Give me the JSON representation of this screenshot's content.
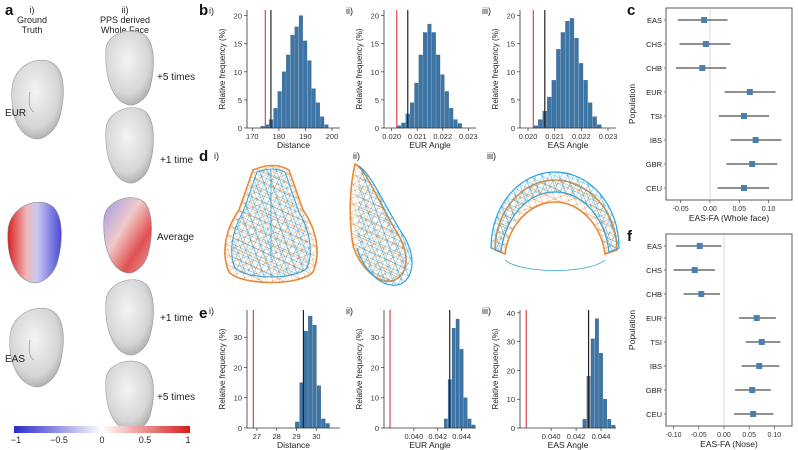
{
  "panel_a": {
    "letter": "a",
    "col1": {
      "roman": "i)",
      "line1": "Ground",
      "line2": "Truth"
    },
    "col2": {
      "roman": "ii)",
      "line1": "PPS derived",
      "line2": "Whole Face"
    },
    "row_labels": {
      "eur": "EUR",
      "eas": "EAS"
    },
    "right_labels": [
      "+5 times",
      "+1 time",
      "Average",
      "+1 time",
      "+5 times"
    ],
    "colorbar_ticks": [
      "−1",
      "−0.5",
      "0",
      "0.5",
      "1"
    ],
    "colors": {
      "neg": "#2a2acb",
      "mid": "#ffffff",
      "pos": "#d81b1b"
    }
  },
  "panel_b": {
    "letter": "b"
  },
  "panel_d": {
    "letter": "d",
    "romans": [
      "i)",
      "ii)",
      "iii)"
    ]
  },
  "panel_e": {
    "letter": "e"
  },
  "panel_c": {
    "letter": "c"
  },
  "panel_f": {
    "letter": "f"
  },
  "chart_data": [
    {
      "id": "b-i",
      "type": "bar",
      "roman": "i)",
      "xlabel": "Distance",
      "ylabel": "Relative frequency (%)",
      "xlim": [
        168,
        203
      ],
      "ylim": [
        0,
        21
      ],
      "xticks": [
        170,
        180,
        190,
        200
      ],
      "yticks": [
        0,
        5,
        10,
        15,
        20
      ],
      "bin_width": 1.6,
      "bins": [
        [
          174.0,
          0.3
        ],
        [
          175.6,
          0.6
        ],
        [
          177.2,
          1.5
        ],
        [
          178.8,
          3.5
        ],
        [
          180.4,
          6.5
        ],
        [
          182.0,
          10
        ],
        [
          183.6,
          13
        ],
        [
          185.2,
          16.5
        ],
        [
          186.8,
          18
        ],
        [
          188.4,
          20
        ],
        [
          190.0,
          15.5
        ],
        [
          191.6,
          12
        ],
        [
          193.2,
          7
        ],
        [
          194.8,
          4.5
        ],
        [
          196.4,
          2
        ],
        [
          198.0,
          0.6
        ]
      ],
      "vlines": [
        {
          "x": 174.9,
          "color": "#e0454b"
        },
        {
          "x": 177.0,
          "color": "#222222"
        }
      ]
    },
    {
      "id": "b-ii",
      "type": "bar",
      "roman": "ii)",
      "xlabel": "EUR Angle",
      "ylabel": "Relative frequency (%)",
      "xlim": [
        0.0197,
        0.0233
      ],
      "ylim": [
        0,
        21
      ],
      "xticks": [
        0.02,
        0.021,
        0.022,
        0.023
      ],
      "xtick_labels": [
        "0.020",
        "0.021",
        "0.022",
        "0.023"
      ],
      "yticks": [
        0,
        5,
        10,
        15,
        20
      ],
      "bin_width": 0.00017,
      "bins": [
        [
          0.0203,
          0.4
        ],
        [
          0.02047,
          0.9
        ],
        [
          0.02064,
          2.5
        ],
        [
          0.02081,
          4.5
        ],
        [
          0.02098,
          8
        ],
        [
          0.02115,
          13
        ],
        [
          0.02132,
          17
        ],
        [
          0.02149,
          18.5
        ],
        [
          0.02166,
          17
        ],
        [
          0.02183,
          13
        ],
        [
          0.022,
          9.5
        ],
        [
          0.02217,
          6.5
        ],
        [
          0.02234,
          3.5
        ],
        [
          0.02251,
          1.5
        ],
        [
          0.02268,
          0.8
        ]
      ],
      "vlines": [
        {
          "x": 0.0202,
          "color": "#e0454b"
        },
        {
          "x": 0.02063,
          "color": "#222222"
        }
      ]
    },
    {
      "id": "b-iii",
      "type": "bar",
      "roman": "iii)",
      "xlabel": "EAS Angle",
      "ylabel": "Relative frequency (%)",
      "xlim": [
        0.0197,
        0.0233
      ],
      "ylim": [
        0,
        21
      ],
      "xticks": [
        0.02,
        0.021,
        0.022,
        0.023
      ],
      "xtick_labels": [
        "0.020",
        "0.021",
        "0.022",
        "0.023"
      ],
      "yticks": [
        0,
        5,
        10,
        15,
        20
      ],
      "bin_width": 0.00017,
      "bins": [
        [
          0.0203,
          0.4
        ],
        [
          0.02047,
          1.5
        ],
        [
          0.02064,
          3
        ],
        [
          0.02081,
          5.5
        ],
        [
          0.02098,
          8.5
        ],
        [
          0.02115,
          14
        ],
        [
          0.02132,
          17
        ],
        [
          0.02149,
          19
        ],
        [
          0.02166,
          19.5
        ],
        [
          0.02183,
          16
        ],
        [
          0.022,
          11.5
        ],
        [
          0.02217,
          8.5
        ],
        [
          0.02234,
          4.5
        ],
        [
          0.02251,
          2
        ],
        [
          0.02268,
          0.6
        ]
      ],
      "vlines": [
        {
          "x": 0.0202,
          "color": "#e0454b"
        },
        {
          "x": 0.02063,
          "color": "#222222"
        }
      ]
    },
    {
      "id": "e-i",
      "type": "bar",
      "roman": "i)",
      "xlabel": "Distance",
      "ylabel": "Relative frequency (%)",
      "xlim": [
        26.5,
        31.2
      ],
      "ylim": [
        0,
        39
      ],
      "xticks": [
        27,
        28,
        29,
        30
      ],
      "yticks": [
        0,
        10,
        20,
        30
      ],
      "bin_width": 0.22,
      "bins": [
        [
          29.05,
          2
        ],
        [
          29.27,
          15
        ],
        [
          29.49,
          32
        ],
        [
          29.71,
          37
        ],
        [
          29.93,
          34
        ],
        [
          30.15,
          14
        ],
        [
          30.37,
          3
        ],
        [
          30.59,
          1.5
        ]
      ],
      "vlines": [
        {
          "x": 26.82,
          "color": "#e0454b"
        },
        {
          "x": 29.35,
          "color": "#222222"
        }
      ]
    },
    {
      "id": "e-ii",
      "type": "bar",
      "roman": "ii)",
      "xlabel": "EUR Angle",
      "ylabel": "Relative frequency (%)",
      "xlim": [
        0.0375,
        0.0452
      ],
      "ylim": [
        0,
        39
      ],
      "xticks": [
        0.04,
        0.042,
        0.044
      ],
      "xtick_labels": [
        "0.040",
        "0.042",
        "0.044"
      ],
      "yticks": [
        0,
        10,
        20,
        30
      ],
      "bin_width": 0.00033,
      "bins": [
        [
          0.0427,
          3
        ],
        [
          0.04303,
          16
        ],
        [
          0.04336,
          33
        ],
        [
          0.04369,
          36
        ],
        [
          0.04402,
          26
        ],
        [
          0.04435,
          10
        ],
        [
          0.04468,
          3
        ],
        [
          0.04501,
          1
        ]
      ],
      "vlines": [
        {
          "x": 0.038,
          "color": "#e0454b"
        },
        {
          "x": 0.043,
          "color": "#222222"
        }
      ]
    },
    {
      "id": "e-iii",
      "type": "bar",
      "roman": "iii)",
      "xlabel": "EAS Angle",
      "ylabel": "Relative frequency (%)",
      "xlim": [
        0.0375,
        0.0452
      ],
      "ylim": [
        0,
        41
      ],
      "xticks": [
        0.04,
        0.042,
        0.044
      ],
      "xtick_labels": [
        "0.040",
        "0.042",
        "0.044"
      ],
      "yticks": [
        0,
        10,
        20,
        30,
        40
      ],
      "bin_width": 0.00033,
      "bins": [
        [
          0.0427,
          3
        ],
        [
          0.04303,
          18
        ],
        [
          0.04336,
          31
        ],
        [
          0.04369,
          38
        ],
        [
          0.04402,
          26
        ],
        [
          0.04435,
          10
        ],
        [
          0.04468,
          3
        ],
        [
          0.04501,
          1
        ]
      ],
      "vlines": [
        {
          "x": 0.038,
          "color": "#e0454b"
        },
        {
          "x": 0.043,
          "color": "#222222"
        }
      ]
    },
    {
      "id": "c",
      "type": "forest",
      "xlabel": "EAS-FA (Whole face)",
      "ylabel": "Population",
      "xlim": [
        -0.075,
        0.14
      ],
      "xticks": [
        -0.05,
        0.0,
        0.05,
        0.1
      ],
      "xtick_labels": [
        "-0.05",
        "0.00",
        "0.05",
        "0.10"
      ],
      "rows": [
        {
          "label": "EAS",
          "est": -0.01,
          "lo": -0.055,
          "hi": 0.03
        },
        {
          "label": "CHS",
          "est": -0.007,
          "lo": -0.052,
          "hi": 0.035
        },
        {
          "label": "CHB",
          "est": -0.013,
          "lo": -0.058,
          "hi": 0.028
        },
        {
          "label": "EUR",
          "est": 0.068,
          "lo": 0.025,
          "hi": 0.112
        },
        {
          "label": "TSI",
          "est": 0.058,
          "lo": 0.015,
          "hi": 0.101
        },
        {
          "label": "IBS",
          "est": 0.078,
          "lo": 0.035,
          "hi": 0.122
        },
        {
          "label": "GBR",
          "est": 0.072,
          "lo": 0.028,
          "hi": 0.115
        },
        {
          "label": "CEU",
          "est": 0.058,
          "lo": 0.013,
          "hi": 0.101
        }
      ]
    },
    {
      "id": "f",
      "type": "forest",
      "xlabel": "EAS-FA (Nose)",
      "ylabel": "Population",
      "xlim": [
        -0.115,
        0.135
      ],
      "xticks": [
        -0.1,
        -0.05,
        0.0,
        0.05,
        0.1
      ],
      "xtick_labels": [
        "-0.10",
        "-0.05",
        "0.00",
        "0.05",
        "0.10"
      ],
      "rows": [
        {
          "label": "EAS",
          "est": -0.048,
          "lo": -0.095,
          "hi": -0.005
        },
        {
          "label": "CHS",
          "est": -0.058,
          "lo": -0.1,
          "hi": -0.018
        },
        {
          "label": "CHB",
          "est": -0.045,
          "lo": -0.08,
          "hi": -0.008
        },
        {
          "label": "EUR",
          "est": 0.065,
          "lo": 0.03,
          "hi": 0.103
        },
        {
          "label": "TSI",
          "est": 0.075,
          "lo": 0.043,
          "hi": 0.112
        },
        {
          "label": "IBS",
          "est": 0.07,
          "lo": 0.035,
          "hi": 0.11
        },
        {
          "label": "GBR",
          "est": 0.056,
          "lo": 0.022,
          "hi": 0.093
        },
        {
          "label": "CEU",
          "est": 0.058,
          "lo": 0.02,
          "hi": 0.098
        }
      ]
    }
  ],
  "colors": {
    "bar": "#3d75a6",
    "bar_edge": "#2d5c85",
    "point": "#4a7fb0",
    "mesh_orange": "#e58a3c",
    "mesh_blue": "#2fa3d9"
  }
}
